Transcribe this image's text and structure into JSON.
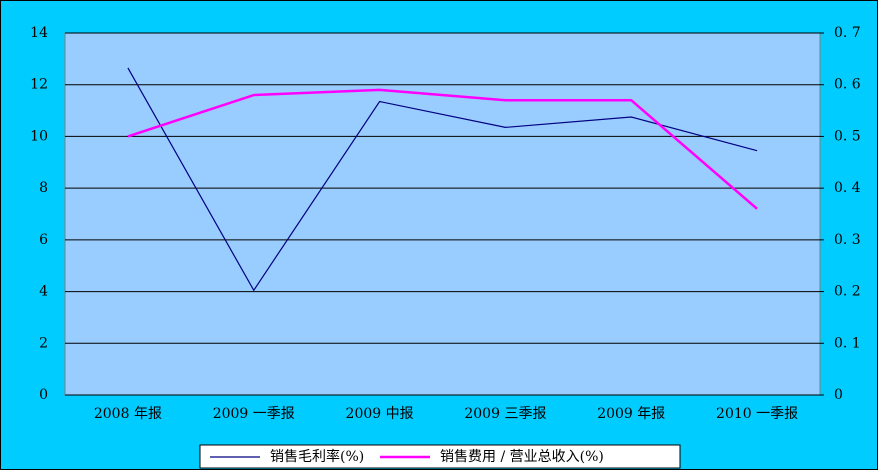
{
  "chart_data": {
    "type": "line",
    "categories": [
      "2008 年报",
      "2009 一季报",
      "2009 中报",
      "2009 三季报",
      "2009 年报",
      "2010 一季报"
    ],
    "series": [
      {
        "name": "销售毛利率(%)",
        "color": "#000080",
        "values": [
          12.65,
          4.05,
          11.35,
          10.35,
          10.75,
          9.45
        ]
      },
      {
        "name": "销售费用 / 营业总收入(%)",
        "color": "#ff00ff",
        "axis": "y2",
        "values": [
          0.5,
          0.58,
          0.59,
          0.57,
          0.57,
          0.36
        ]
      }
    ],
    "ylim": [
      0,
      14
    ],
    "yticks": [
      0,
      2,
      4,
      6,
      8,
      10,
      12,
      14
    ],
    "y2lim": [
      0,
      0.7
    ],
    "y2ticks": [
      0,
      {
        "value": 0.1,
        "label": "0. 1"
      },
      {
        "value": 0.2,
        "label": "0. 2"
      },
      {
        "value": 0.3,
        "label": "0. 3"
      },
      {
        "value": 0.4,
        "label": "0. 4"
      },
      {
        "value": 0.5,
        "label": "0. 5"
      },
      {
        "value": 0.6,
        "label": "0. 6"
      },
      {
        "value": 0.7,
        "label": "0. 7"
      }
    ],
    "grid": true,
    "legend": "bottom"
  }
}
